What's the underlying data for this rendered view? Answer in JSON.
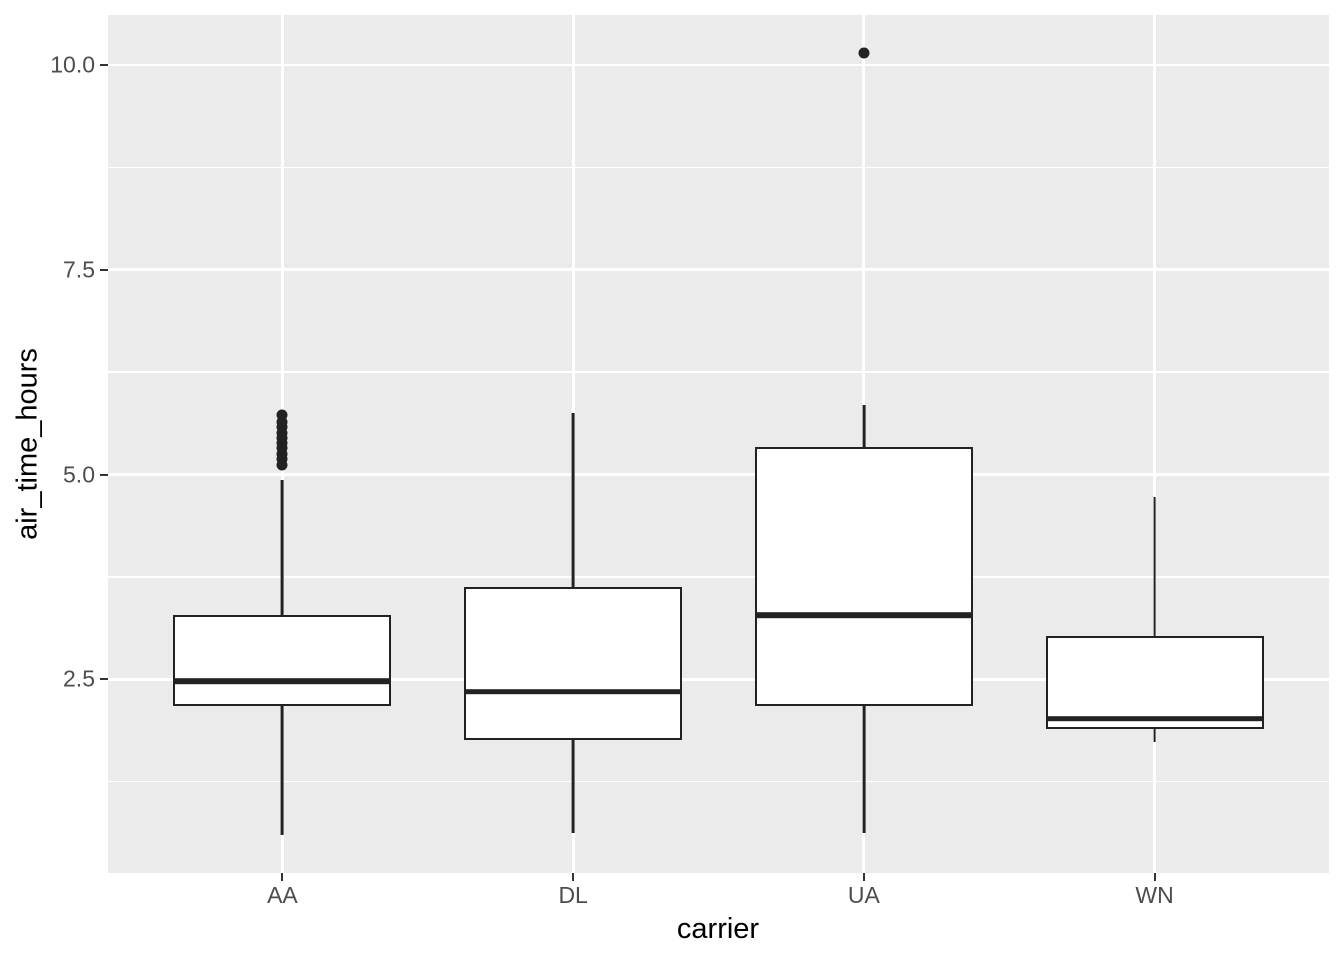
{
  "style": {
    "figure_bg": "#FFFFFF",
    "panel_bg": "#EBEBEB",
    "grid_color": "#FFFFFF",
    "box_stroke": "#222222",
    "box_fill": "#FFFFFF",
    "outlier_color": "#222222",
    "tick_label_color": "#4D4D4D",
    "axis_title_color": "#000000",
    "tick_mark_color": "#333333"
  },
  "chart_data": {
    "type": "boxplot",
    "title": "",
    "xlabel": "carrier",
    "ylabel": "air_time_hours",
    "categories": [
      "AA",
      "DL",
      "UA",
      "WN"
    ],
    "x_axis": {
      "positions": [
        1,
        2,
        3,
        4
      ],
      "range": [
        0.4,
        4.6
      ],
      "box_width": 0.75
    },
    "y_axis": {
      "range": [
        0.135,
        10.61
      ],
      "major_ticks": [
        {
          "value": 2.5,
          "label": "2.5"
        },
        {
          "value": 5.0,
          "label": "5.0"
        },
        {
          "value": 7.5,
          "label": "7.5"
        },
        {
          "value": 10.0,
          "label": "10.0"
        }
      ],
      "minor_ticks": [
        1.25,
        3.75,
        6.25,
        8.75
      ],
      "grid": true,
      "legend": "none"
    },
    "series": [
      {
        "name": "AA",
        "position": 1,
        "whisker_low": 0.6,
        "q1": 2.17,
        "median": 2.48,
        "q3": 3.28,
        "whisker_high": 4.93,
        "outliers": [
          5.73,
          5.64,
          5.58,
          5.51,
          5.45,
          5.38,
          5.32,
          5.25,
          5.19,
          5.12
        ]
      },
      {
        "name": "DL",
        "position": 2,
        "whisker_low": 0.62,
        "q1": 1.76,
        "median": 2.35,
        "q3": 3.63,
        "whisker_high": 5.75,
        "outliers": []
      },
      {
        "name": "UA",
        "position": 3,
        "whisker_low": 0.62,
        "q1": 2.17,
        "median": 3.28,
        "q3": 5.34,
        "whisker_high": 5.85,
        "outliers": [
          10.15
        ]
      },
      {
        "name": "WN",
        "position": 4,
        "whisker_low": 1.73,
        "q1": 1.89,
        "median": 2.02,
        "q3": 3.03,
        "whisker_high": 4.73,
        "outliers": []
      }
    ]
  }
}
